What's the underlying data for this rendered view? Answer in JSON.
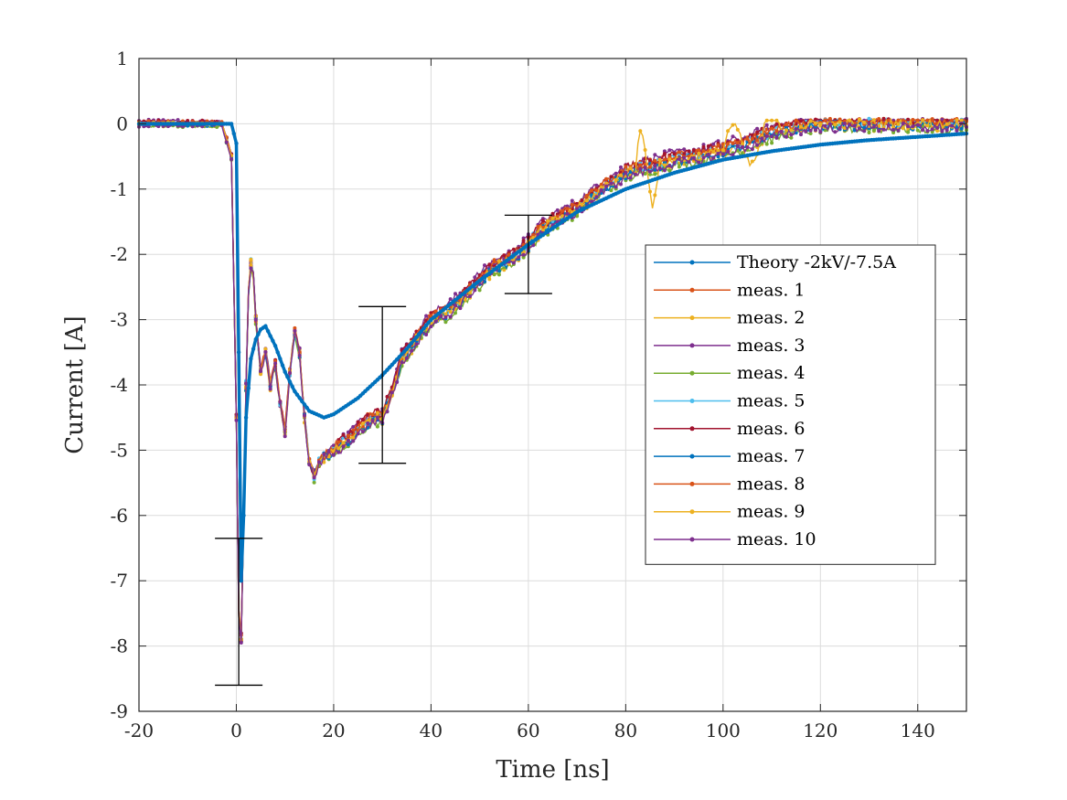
{
  "chart_data": {
    "type": "line",
    "title": "",
    "xlabel": "Time [ns]",
    "ylabel": "Current [A]",
    "xlim": [
      -20,
      150
    ],
    "ylim": [
      -9,
      1
    ],
    "xticks": [
      -20,
      0,
      20,
      40,
      60,
      80,
      100,
      120,
      140
    ],
    "yticks": [
      1,
      0,
      -1,
      -2,
      -3,
      -4,
      -5,
      -6,
      -7,
      -8,
      -9
    ],
    "grid": true,
    "legend_position": "center-right",
    "legend": [
      "Theory -2kV/-7.5A",
      "meas. 1",
      "meas. 2",
      "meas. 3",
      "meas. 4",
      "meas. 5",
      "meas. 6",
      "meas. 7",
      "meas. 8",
      "meas. 9",
      "meas. 10"
    ],
    "colors": [
      "#0072BD",
      "#D95319",
      "#EDB120",
      "#7E2F8E",
      "#77AC30",
      "#4DBEEE",
      "#A2142F",
      "#0072BD",
      "#D95319",
      "#EDB120",
      "#7E2F8E"
    ],
    "theory": {
      "name": "Theory -2kV/-7.5A",
      "x": [
        -20,
        -5,
        -1,
        0,
        0.5,
        1,
        1.5,
        2,
        3,
        4,
        5,
        6,
        8,
        10,
        12,
        15,
        18,
        20,
        25,
        30,
        35,
        40,
        50,
        60,
        70,
        80,
        90,
        100,
        110,
        120,
        130,
        140,
        150
      ],
      "y": [
        0,
        0,
        0,
        -0.3,
        -3.5,
        -7.0,
        -6.0,
        -4.5,
        -3.6,
        -3.3,
        -3.15,
        -3.1,
        -3.4,
        -3.8,
        -4.1,
        -4.4,
        -4.5,
        -4.45,
        -4.2,
        -3.85,
        -3.45,
        -3.0,
        -2.4,
        -1.85,
        -1.35,
        -1.0,
        -0.75,
        -0.55,
        -0.42,
        -0.32,
        -0.25,
        -0.2,
        -0.15
      ]
    },
    "measurement_profile": {
      "x": [
        -20,
        -5,
        -3,
        -1,
        0,
        0.5,
        1,
        1.5,
        2,
        2.5,
        3,
        3.5,
        4,
        5,
        6,
        7,
        8,
        9,
        10,
        11,
        12,
        13,
        14,
        15,
        16,
        17,
        18,
        20,
        22,
        25,
        28,
        30,
        32,
        34,
        36,
        38,
        40,
        43,
        46,
        50,
        53,
        56,
        60,
        63,
        66,
        70,
        75,
        80,
        85,
        90,
        95,
        100,
        105,
        110,
        115,
        120,
        125,
        130,
        135,
        140,
        145,
        150
      ],
      "y": [
        0,
        0,
        0,
        -0.5,
        -4.5,
        -7.5,
        -7.9,
        -6.0,
        -4.0,
        -2.6,
        -2.15,
        -2.3,
        -3.0,
        -3.8,
        -3.5,
        -4.0,
        -3.7,
        -4.3,
        -4.7,
        -3.8,
        -3.2,
        -3.5,
        -4.5,
        -5.2,
        -5.4,
        -5.2,
        -5.1,
        -5.0,
        -4.9,
        -4.7,
        -4.5,
        -4.5,
        -4.1,
        -3.6,
        -3.4,
        -3.2,
        -3.0,
        -2.9,
        -2.7,
        -2.4,
        -2.2,
        -2.1,
        -1.85,
        -1.6,
        -1.45,
        -1.3,
        -1.0,
        -0.75,
        -0.65,
        -0.55,
        -0.5,
        -0.4,
        -0.3,
        -0.15,
        -0.05,
        0,
        0,
        0,
        0,
        0,
        0,
        0
      ]
    },
    "measurement_offsets": [
      0.05,
      -0.05,
      0.1,
      -0.08,
      0.02,
      0.07,
      -0.03,
      0.04,
      0.0,
      -0.06
    ],
    "error_bars": [
      {
        "x": 0.5,
        "center": -7.45,
        "low": -8.6,
        "high": -6.35
      },
      {
        "x": 30,
        "center": -4.0,
        "low": -5.2,
        "high": -2.8
      },
      {
        "x": 60,
        "center": -2.0,
        "low": -2.6,
        "high": -1.4
      }
    ]
  }
}
